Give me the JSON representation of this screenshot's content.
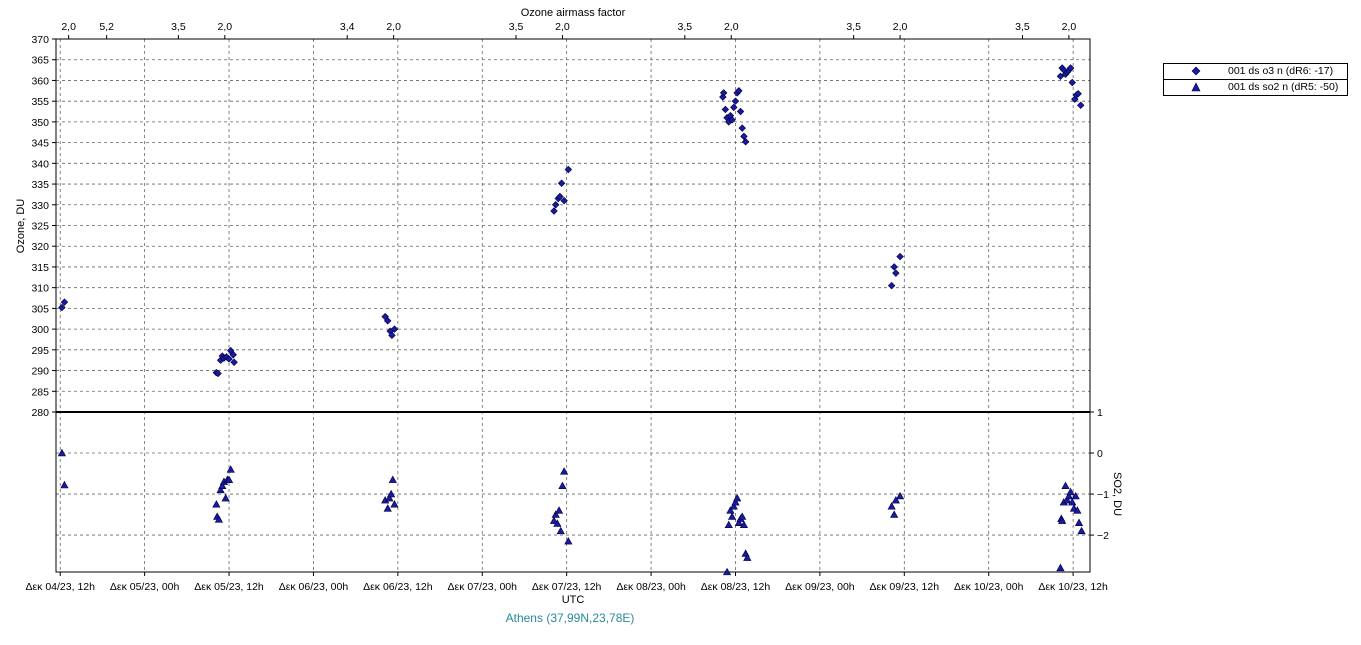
{
  "chart_data": {
    "type": "scatter",
    "top_axis_label": "Ozone airmass factor",
    "top_ticks": [
      {
        "t": 0.1,
        "label": "2,0"
      },
      {
        "t": 0.55,
        "label": "5,2"
      },
      {
        "t": 1.4,
        "label": "3,5"
      },
      {
        "t": 1.95,
        "label": "2,0"
      },
      {
        "t": 3.4,
        "label": "3,4"
      },
      {
        "t": 3.95,
        "label": "2,0"
      },
      {
        "t": 5.4,
        "label": "3,5"
      },
      {
        "t": 5.95,
        "label": "2,0"
      },
      {
        "t": 7.4,
        "label": "3,5"
      },
      {
        "t": 7.95,
        "label": "2,0"
      },
      {
        "t": 9.4,
        "label": "3,5"
      },
      {
        "t": 9.95,
        "label": "2,0"
      },
      {
        "t": 11.4,
        "label": "3,5"
      },
      {
        "t": 11.95,
        "label": "2,0"
      }
    ],
    "xlabel": "UTC",
    "x_ticks": [
      {
        "t": 0,
        "label": "Δεκ 04/23, 12h"
      },
      {
        "t": 1,
        "label": "Δεκ 05/23, 00h"
      },
      {
        "t": 2,
        "label": "Δεκ 05/23, 12h"
      },
      {
        "t": 3,
        "label": "Δεκ 06/23, 00h"
      },
      {
        "t": 4,
        "label": "Δεκ 06/23, 12h"
      },
      {
        "t": 5,
        "label": "Δεκ 07/23, 00h"
      },
      {
        "t": 6,
        "label": "Δεκ 07/23, 12h"
      },
      {
        "t": 7,
        "label": "Δεκ 08/23, 00h"
      },
      {
        "t": 8,
        "label": "Δεκ 08/23, 12h"
      },
      {
        "t": 9,
        "label": "Δεκ 09/23, 00h"
      },
      {
        "t": 10,
        "label": "Δεκ 09/23, 12h"
      },
      {
        "t": 11,
        "label": "Δεκ 10/23, 00h"
      },
      {
        "t": 12,
        "label": "Δεκ 10/23, 12h"
      }
    ],
    "xlim": [
      -0.05,
      12.2
    ],
    "ylabel_left": "Ozone, DU",
    "ylim_left": [
      280,
      370
    ],
    "yticks_left": [
      280,
      285,
      290,
      295,
      300,
      305,
      310,
      315,
      320,
      325,
      330,
      335,
      340,
      345,
      350,
      355,
      360,
      365,
      370
    ],
    "ylabel_right": "SO2, DU",
    "ylim_right": [
      -2.9,
      1
    ],
    "yticks_right": [
      1,
      0,
      -1,
      -2
    ],
    "yticklabels_right": [
      "1",
      "0",
      "−1",
      "−2"
    ],
    "grid": true,
    "legend_position": "top-right outside",
    "station_label": "Athens (37,99N,23,78E)",
    "series": [
      {
        "name": "001 ds o3  n (dR6: -17)",
        "marker": "diamond",
        "color": "#1a1aa0",
        "points": [
          [
            0.02,
            305.2
          ],
          [
            0.05,
            306.5
          ],
          [
            1.85,
            289.5
          ],
          [
            1.87,
            289.3
          ],
          [
            1.9,
            292.5
          ],
          [
            1.92,
            293.5
          ],
          [
            1.94,
            293.0
          ],
          [
            1.97,
            293.3
          ],
          [
            2.0,
            292.8
          ],
          [
            2.02,
            294.8
          ],
          [
            2.05,
            293.8
          ],
          [
            2.06,
            292.0
          ],
          [
            3.85,
            303.0
          ],
          [
            3.88,
            302.0
          ],
          [
            3.91,
            299.5
          ],
          [
            3.93,
            298.5
          ],
          [
            3.96,
            300.0
          ],
          [
            5.85,
            328.5
          ],
          [
            5.87,
            330.0
          ],
          [
            5.9,
            331.5
          ],
          [
            5.92,
            332.0
          ],
          [
            5.94,
            335.2
          ],
          [
            5.97,
            331.0
          ],
          [
            6.02,
            338.5
          ],
          [
            7.85,
            356.0
          ],
          [
            7.86,
            357.0
          ],
          [
            7.88,
            353.0
          ],
          [
            7.9,
            351.0
          ],
          [
            7.92,
            350.0
          ],
          [
            7.94,
            351.5
          ],
          [
            7.96,
            350.5
          ],
          [
            7.98,
            353.5
          ],
          [
            8.0,
            355.0
          ],
          [
            8.02,
            357.0
          ],
          [
            8.04,
            357.5
          ],
          [
            8.06,
            352.5
          ],
          [
            8.08,
            348.5
          ],
          [
            8.1,
            346.5
          ],
          [
            8.12,
            345.2
          ],
          [
            9.85,
            310.5
          ],
          [
            9.88,
            315.0
          ],
          [
            9.9,
            313.5
          ],
          [
            9.95,
            317.5
          ],
          [
            11.85,
            361.0
          ],
          [
            11.87,
            363.0
          ],
          [
            11.89,
            362.5
          ],
          [
            11.91,
            361.5
          ],
          [
            11.93,
            362.0
          ],
          [
            11.95,
            362.5
          ],
          [
            11.97,
            363.0
          ],
          [
            11.99,
            359.5
          ],
          [
            12.02,
            355.5
          ],
          [
            12.04,
            356.5
          ],
          [
            12.06,
            356.8
          ],
          [
            12.09,
            354.0
          ]
        ]
      },
      {
        "name": "001 ds so2  n (dR5: -50)",
        "marker": "triangle",
        "color": "#1a1aa0",
        "points": [
          [
            0.02,
            0.0
          ],
          [
            0.05,
            -0.78
          ],
          [
            1.85,
            -1.25
          ],
          [
            1.86,
            -1.55
          ],
          [
            1.88,
            -1.62
          ],
          [
            1.9,
            -0.9
          ],
          [
            1.92,
            -0.8
          ],
          [
            1.94,
            -0.7
          ],
          [
            1.96,
            -1.1
          ],
          [
            1.98,
            -0.65
          ],
          [
            2.0,
            -0.65
          ],
          [
            2.02,
            -0.4
          ],
          [
            3.85,
            -1.15
          ],
          [
            3.88,
            -1.35
          ],
          [
            3.9,
            -1.1
          ],
          [
            3.92,
            -1.0
          ],
          [
            3.94,
            -0.65
          ],
          [
            3.96,
            -1.25
          ],
          [
            5.85,
            -1.65
          ],
          [
            5.87,
            -1.5
          ],
          [
            5.89,
            -1.72
          ],
          [
            5.91,
            -1.4
          ],
          [
            5.93,
            -1.9
          ],
          [
            5.95,
            -0.8
          ],
          [
            5.97,
            -0.45
          ],
          [
            6.02,
            -2.15
          ],
          [
            7.9,
            -2.9
          ],
          [
            7.92,
            -1.75
          ],
          [
            7.94,
            -1.4
          ],
          [
            7.96,
            -1.55
          ],
          [
            7.98,
            -1.3
          ],
          [
            8.0,
            -1.2
          ],
          [
            8.02,
            -1.1
          ],
          [
            8.04,
            -1.7
          ],
          [
            8.06,
            -1.6
          ],
          [
            8.08,
            -1.55
          ],
          [
            8.1,
            -1.75
          ],
          [
            8.12,
            -2.45
          ],
          [
            8.14,
            -2.55
          ],
          [
            9.85,
            -1.3
          ],
          [
            9.88,
            -1.5
          ],
          [
            9.9,
            -1.15
          ],
          [
            9.95,
            -1.05
          ],
          [
            11.85,
            -2.8
          ],
          [
            11.86,
            -1.6
          ],
          [
            11.87,
            -1.65
          ],
          [
            11.89,
            -1.2
          ],
          [
            11.91,
            -0.8
          ],
          [
            11.93,
            -1.15
          ],
          [
            11.95,
            -1.05
          ],
          [
            11.97,
            -0.95
          ],
          [
            11.99,
            -1.2
          ],
          [
            12.01,
            -1.35
          ],
          [
            12.03,
            -1.05
          ],
          [
            12.05,
            -1.4
          ],
          [
            12.07,
            -1.7
          ],
          [
            12.1,
            -1.9
          ]
        ]
      }
    ]
  }
}
